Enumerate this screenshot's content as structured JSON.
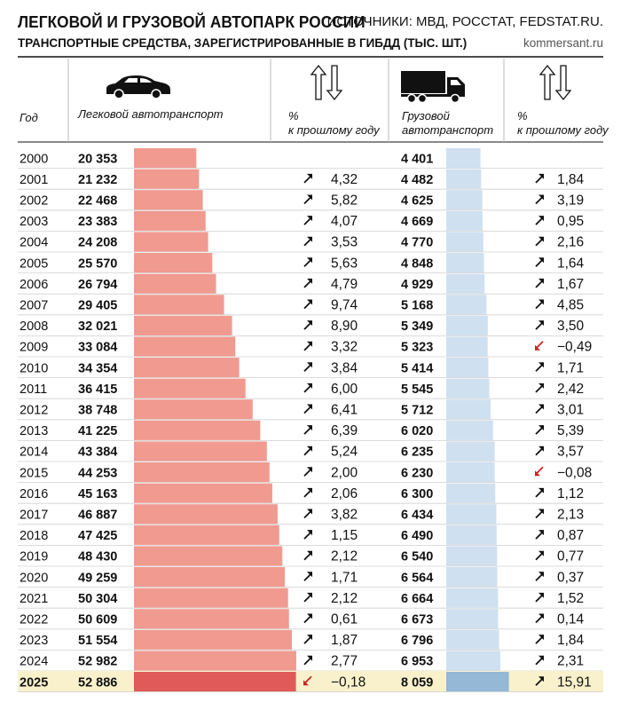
{
  "header": {
    "title": "ЛЕГКОВОЙ И ГРУЗОВОЙ АВТОПАРК РОССИИ",
    "sources": "ИСТОЧНИКИ: МВД, РОССТАТ, FEDSTAT.RU.",
    "subtitle": "ТРАНСПОРТНЫЕ СРЕДСТВА, ЗАРЕГИСТРИРОВАННЫЕ В ГИБДД (ТЫС. ШТ.)",
    "site": "kommersant.ru"
  },
  "icons": {
    "car": "car-icon",
    "truck": "truck-icon",
    "updown": "up-down-arrows-icon"
  },
  "colors": {
    "car_bar": "#f19a90",
    "car_bar_highlight": "#e05a5a",
    "truck_bar": "#cfe0f0",
    "truck_bar_highlight": "#94b8d6",
    "highlight_row": "#f8f1cc",
    "arrow_up": "#111111",
    "arrow_down": "#cc2222"
  },
  "chart_data": {
    "type": "table",
    "column_headers": {
      "year": "Год",
      "cars": "Легковой автотранспорт",
      "cars_pct": [
        "%",
        "к прошлому году"
      ],
      "trucks": [
        "Грузовой",
        "автотранспорт"
      ],
      "trucks_pct": [
        "%",
        "к прошлому году"
      ]
    },
    "highlight_year": "2025",
    "rows": [
      {
        "year": "2000",
        "cars": 20353,
        "cars_label": "20 353",
        "cars_pct": null,
        "trucks": 4401,
        "trucks_label": "4 401",
        "trucks_pct": null
      },
      {
        "year": "2001",
        "cars": 21232,
        "cars_label": "21 232",
        "cars_pct": "4,32",
        "cars_dir": "up",
        "trucks": 4482,
        "trucks_label": "4 482",
        "trucks_pct": "1,84",
        "trucks_dir": "up"
      },
      {
        "year": "2002",
        "cars": 22468,
        "cars_label": "22 468",
        "cars_pct": "5,82",
        "cars_dir": "up",
        "trucks": 4625,
        "trucks_label": "4 625",
        "trucks_pct": "3,19",
        "trucks_dir": "up"
      },
      {
        "year": "2003",
        "cars": 23383,
        "cars_label": "23 383",
        "cars_pct": "4,07",
        "cars_dir": "up",
        "trucks": 4669,
        "trucks_label": "4 669",
        "trucks_pct": "0,95",
        "trucks_dir": "up"
      },
      {
        "year": "2004",
        "cars": 24208,
        "cars_label": "24 208",
        "cars_pct": "3,53",
        "cars_dir": "up",
        "trucks": 4770,
        "trucks_label": "4 770",
        "trucks_pct": "2,16",
        "trucks_dir": "up"
      },
      {
        "year": "2005",
        "cars": 25570,
        "cars_label": "25 570",
        "cars_pct": "5,63",
        "cars_dir": "up",
        "trucks": 4848,
        "trucks_label": "4 848",
        "trucks_pct": "1,64",
        "trucks_dir": "up"
      },
      {
        "year": "2006",
        "cars": 26794,
        "cars_label": "26 794",
        "cars_pct": "4,79",
        "cars_dir": "up",
        "trucks": 4929,
        "trucks_label": "4 929",
        "trucks_pct": "1,67",
        "trucks_dir": "up"
      },
      {
        "year": "2007",
        "cars": 29405,
        "cars_label": "29 405",
        "cars_pct": "9,74",
        "cars_dir": "up",
        "trucks": 5168,
        "trucks_label": "5 168",
        "trucks_pct": "4,85",
        "trucks_dir": "up"
      },
      {
        "year": "2008",
        "cars": 32021,
        "cars_label": "32 021",
        "cars_pct": "8,90",
        "cars_dir": "up",
        "trucks": 5349,
        "trucks_label": "5 349",
        "trucks_pct": "3,50",
        "trucks_dir": "up"
      },
      {
        "year": "2009",
        "cars": 33084,
        "cars_label": "33 084",
        "cars_pct": "3,32",
        "cars_dir": "up",
        "trucks": 5323,
        "trucks_label": "5 323",
        "trucks_pct": "−0,49",
        "trucks_dir": "down"
      },
      {
        "year": "2010",
        "cars": 34354,
        "cars_label": "34 354",
        "cars_pct": "3,84",
        "cars_dir": "up",
        "trucks": 5414,
        "trucks_label": "5 414",
        "trucks_pct": "1,71",
        "trucks_dir": "up"
      },
      {
        "year": "2011",
        "cars": 36415,
        "cars_label": "36 415",
        "cars_pct": "6,00",
        "cars_dir": "up",
        "trucks": 5545,
        "trucks_label": "5 545",
        "trucks_pct": "2,42",
        "trucks_dir": "up"
      },
      {
        "year": "2012",
        "cars": 38748,
        "cars_label": "38 748",
        "cars_pct": "6,41",
        "cars_dir": "up",
        "trucks": 5712,
        "trucks_label": "5 712",
        "trucks_pct": "3,01",
        "trucks_dir": "up"
      },
      {
        "year": "2013",
        "cars": 41225,
        "cars_label": "41 225",
        "cars_pct": "6,39",
        "cars_dir": "up",
        "trucks": 6020,
        "trucks_label": "6 020",
        "trucks_pct": "5,39",
        "trucks_dir": "up"
      },
      {
        "year": "2014",
        "cars": 43384,
        "cars_label": "43 384",
        "cars_pct": "5,24",
        "cars_dir": "up",
        "trucks": 6235,
        "trucks_label": "6 235",
        "trucks_pct": "3,57",
        "trucks_dir": "up"
      },
      {
        "year": "2015",
        "cars": 44253,
        "cars_label": "44 253",
        "cars_pct": "2,00",
        "cars_dir": "up",
        "trucks": 6230,
        "trucks_label": "6 230",
        "trucks_pct": "−0,08",
        "trucks_dir": "down"
      },
      {
        "year": "2016",
        "cars": 45163,
        "cars_label": "45 163",
        "cars_pct": "2,06",
        "cars_dir": "up",
        "trucks": 6300,
        "trucks_label": "6 300",
        "trucks_pct": "1,12",
        "trucks_dir": "up"
      },
      {
        "year": "2017",
        "cars": 46887,
        "cars_label": "46 887",
        "cars_pct": "3,82",
        "cars_dir": "up",
        "trucks": 6434,
        "trucks_label": "6 434",
        "trucks_pct": "2,13",
        "trucks_dir": "up"
      },
      {
        "year": "2018",
        "cars": 47425,
        "cars_label": "47 425",
        "cars_pct": "1,15",
        "cars_dir": "up",
        "trucks": 6490,
        "trucks_label": "6 490",
        "trucks_pct": "0,87",
        "trucks_dir": "up"
      },
      {
        "year": "2019",
        "cars": 48430,
        "cars_label": "48 430",
        "cars_pct": "2,12",
        "cars_dir": "up",
        "trucks": 6540,
        "trucks_label": "6 540",
        "trucks_pct": "0,77",
        "trucks_dir": "up"
      },
      {
        "year": "2020",
        "cars": 49259,
        "cars_label": "49 259",
        "cars_pct": "1,71",
        "cars_dir": "up",
        "trucks": 6564,
        "trucks_label": "6 564",
        "trucks_pct": "0,37",
        "trucks_dir": "up"
      },
      {
        "year": "2021",
        "cars": 50304,
        "cars_label": "50 304",
        "cars_pct": "2,12",
        "cars_dir": "up",
        "trucks": 6664,
        "trucks_label": "6 664",
        "trucks_pct": "1,52",
        "trucks_dir": "up"
      },
      {
        "year": "2022",
        "cars": 50609,
        "cars_label": "50 609",
        "cars_pct": "0,61",
        "cars_dir": "up",
        "trucks": 6673,
        "trucks_label": "6 673",
        "trucks_pct": "0,14",
        "trucks_dir": "up"
      },
      {
        "year": "2023",
        "cars": 51554,
        "cars_label": "51 554",
        "cars_pct": "1,87",
        "cars_dir": "up",
        "trucks": 6796,
        "trucks_label": "6 796",
        "trucks_pct": "1,84",
        "trucks_dir": "up"
      },
      {
        "year": "2024",
        "cars": 52982,
        "cars_label": "52 982",
        "cars_pct": "2,77",
        "cars_dir": "up",
        "trucks": 6953,
        "trucks_label": "6 953",
        "trucks_pct": "2,31",
        "trucks_dir": "up"
      },
      {
        "year": "2025",
        "cars": 52886,
        "cars_label": "52 886",
        "cars_pct": "−0,18",
        "cars_dir": "down",
        "trucks": 8059,
        "trucks_label": "8 059",
        "trucks_pct": "15,91",
        "trucks_dir": "up"
      }
    ]
  }
}
